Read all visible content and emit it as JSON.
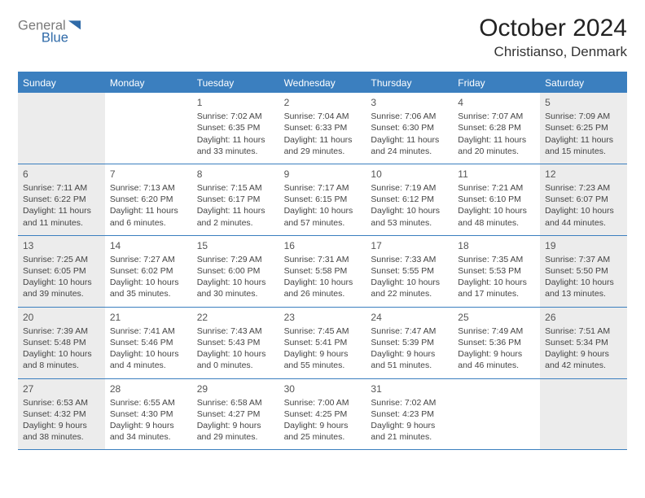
{
  "brand": {
    "name_part1": "General",
    "name_part2": "Blue",
    "color_gray": "#7a7a7a",
    "color_blue": "#2f6aa8",
    "triangle_color": "#2f6aa8"
  },
  "title": {
    "month": "October 2024",
    "location": "Christianso, Denmark"
  },
  "theme": {
    "header_bg": "#3b7fbf",
    "header_text": "#ffffff",
    "rule_color": "#3b7fbf",
    "shade_bg": "#ececec",
    "text_color": "#444444"
  },
  "calendar": {
    "type": "calendar-grid",
    "columns": 7,
    "day_headers": [
      "Sunday",
      "Monday",
      "Tuesday",
      "Wednesday",
      "Thursday",
      "Friday",
      "Saturday"
    ],
    "cells": [
      {
        "day": "",
        "shaded": true
      },
      {
        "day": ""
      },
      {
        "day": "1",
        "sunrise": "Sunrise: 7:02 AM",
        "sunset": "Sunset: 6:35 PM",
        "daylight": "Daylight: 11 hours and 33 minutes."
      },
      {
        "day": "2",
        "sunrise": "Sunrise: 7:04 AM",
        "sunset": "Sunset: 6:33 PM",
        "daylight": "Daylight: 11 hours and 29 minutes."
      },
      {
        "day": "3",
        "sunrise": "Sunrise: 7:06 AM",
        "sunset": "Sunset: 6:30 PM",
        "daylight": "Daylight: 11 hours and 24 minutes."
      },
      {
        "day": "4",
        "sunrise": "Sunrise: 7:07 AM",
        "sunset": "Sunset: 6:28 PM",
        "daylight": "Daylight: 11 hours and 20 minutes."
      },
      {
        "day": "5",
        "shaded": true,
        "sunrise": "Sunrise: 7:09 AM",
        "sunset": "Sunset: 6:25 PM",
        "daylight": "Daylight: 11 hours and 15 minutes."
      },
      {
        "day": "6",
        "shaded": true,
        "sunrise": "Sunrise: 7:11 AM",
        "sunset": "Sunset: 6:22 PM",
        "daylight": "Daylight: 11 hours and 11 minutes."
      },
      {
        "day": "7",
        "sunrise": "Sunrise: 7:13 AM",
        "sunset": "Sunset: 6:20 PM",
        "daylight": "Daylight: 11 hours and 6 minutes."
      },
      {
        "day": "8",
        "sunrise": "Sunrise: 7:15 AM",
        "sunset": "Sunset: 6:17 PM",
        "daylight": "Daylight: 11 hours and 2 minutes."
      },
      {
        "day": "9",
        "sunrise": "Sunrise: 7:17 AM",
        "sunset": "Sunset: 6:15 PM",
        "daylight": "Daylight: 10 hours and 57 minutes."
      },
      {
        "day": "10",
        "sunrise": "Sunrise: 7:19 AM",
        "sunset": "Sunset: 6:12 PM",
        "daylight": "Daylight: 10 hours and 53 minutes."
      },
      {
        "day": "11",
        "sunrise": "Sunrise: 7:21 AM",
        "sunset": "Sunset: 6:10 PM",
        "daylight": "Daylight: 10 hours and 48 minutes."
      },
      {
        "day": "12",
        "shaded": true,
        "sunrise": "Sunrise: 7:23 AM",
        "sunset": "Sunset: 6:07 PM",
        "daylight": "Daylight: 10 hours and 44 minutes."
      },
      {
        "day": "13",
        "shaded": true,
        "sunrise": "Sunrise: 7:25 AM",
        "sunset": "Sunset: 6:05 PM",
        "daylight": "Daylight: 10 hours and 39 minutes."
      },
      {
        "day": "14",
        "sunrise": "Sunrise: 7:27 AM",
        "sunset": "Sunset: 6:02 PM",
        "daylight": "Daylight: 10 hours and 35 minutes."
      },
      {
        "day": "15",
        "sunrise": "Sunrise: 7:29 AM",
        "sunset": "Sunset: 6:00 PM",
        "daylight": "Daylight: 10 hours and 30 minutes."
      },
      {
        "day": "16",
        "sunrise": "Sunrise: 7:31 AM",
        "sunset": "Sunset: 5:58 PM",
        "daylight": "Daylight: 10 hours and 26 minutes."
      },
      {
        "day": "17",
        "sunrise": "Sunrise: 7:33 AM",
        "sunset": "Sunset: 5:55 PM",
        "daylight": "Daylight: 10 hours and 22 minutes."
      },
      {
        "day": "18",
        "sunrise": "Sunrise: 7:35 AM",
        "sunset": "Sunset: 5:53 PM",
        "daylight": "Daylight: 10 hours and 17 minutes."
      },
      {
        "day": "19",
        "shaded": true,
        "sunrise": "Sunrise: 7:37 AM",
        "sunset": "Sunset: 5:50 PM",
        "daylight": "Daylight: 10 hours and 13 minutes."
      },
      {
        "day": "20",
        "shaded": true,
        "sunrise": "Sunrise: 7:39 AM",
        "sunset": "Sunset: 5:48 PM",
        "daylight": "Daylight: 10 hours and 8 minutes."
      },
      {
        "day": "21",
        "sunrise": "Sunrise: 7:41 AM",
        "sunset": "Sunset: 5:46 PM",
        "daylight": "Daylight: 10 hours and 4 minutes."
      },
      {
        "day": "22",
        "sunrise": "Sunrise: 7:43 AM",
        "sunset": "Sunset: 5:43 PM",
        "daylight": "Daylight: 10 hours and 0 minutes."
      },
      {
        "day": "23",
        "sunrise": "Sunrise: 7:45 AM",
        "sunset": "Sunset: 5:41 PM",
        "daylight": "Daylight: 9 hours and 55 minutes."
      },
      {
        "day": "24",
        "sunrise": "Sunrise: 7:47 AM",
        "sunset": "Sunset: 5:39 PM",
        "daylight": "Daylight: 9 hours and 51 minutes."
      },
      {
        "day": "25",
        "sunrise": "Sunrise: 7:49 AM",
        "sunset": "Sunset: 5:36 PM",
        "daylight": "Daylight: 9 hours and 46 minutes."
      },
      {
        "day": "26",
        "shaded": true,
        "sunrise": "Sunrise: 7:51 AM",
        "sunset": "Sunset: 5:34 PM",
        "daylight": "Daylight: 9 hours and 42 minutes."
      },
      {
        "day": "27",
        "shaded": true,
        "sunrise": "Sunrise: 6:53 AM",
        "sunset": "Sunset: 4:32 PM",
        "daylight": "Daylight: 9 hours and 38 minutes."
      },
      {
        "day": "28",
        "sunrise": "Sunrise: 6:55 AM",
        "sunset": "Sunset: 4:30 PM",
        "daylight": "Daylight: 9 hours and 34 minutes."
      },
      {
        "day": "29",
        "sunrise": "Sunrise: 6:58 AM",
        "sunset": "Sunset: 4:27 PM",
        "daylight": "Daylight: 9 hours and 29 minutes."
      },
      {
        "day": "30",
        "sunrise": "Sunrise: 7:00 AM",
        "sunset": "Sunset: 4:25 PM",
        "daylight": "Daylight: 9 hours and 25 minutes."
      },
      {
        "day": "31",
        "sunrise": "Sunrise: 7:02 AM",
        "sunset": "Sunset: 4:23 PM",
        "daylight": "Daylight: 9 hours and 21 minutes."
      },
      {
        "day": ""
      },
      {
        "day": "",
        "shaded": true
      }
    ]
  }
}
